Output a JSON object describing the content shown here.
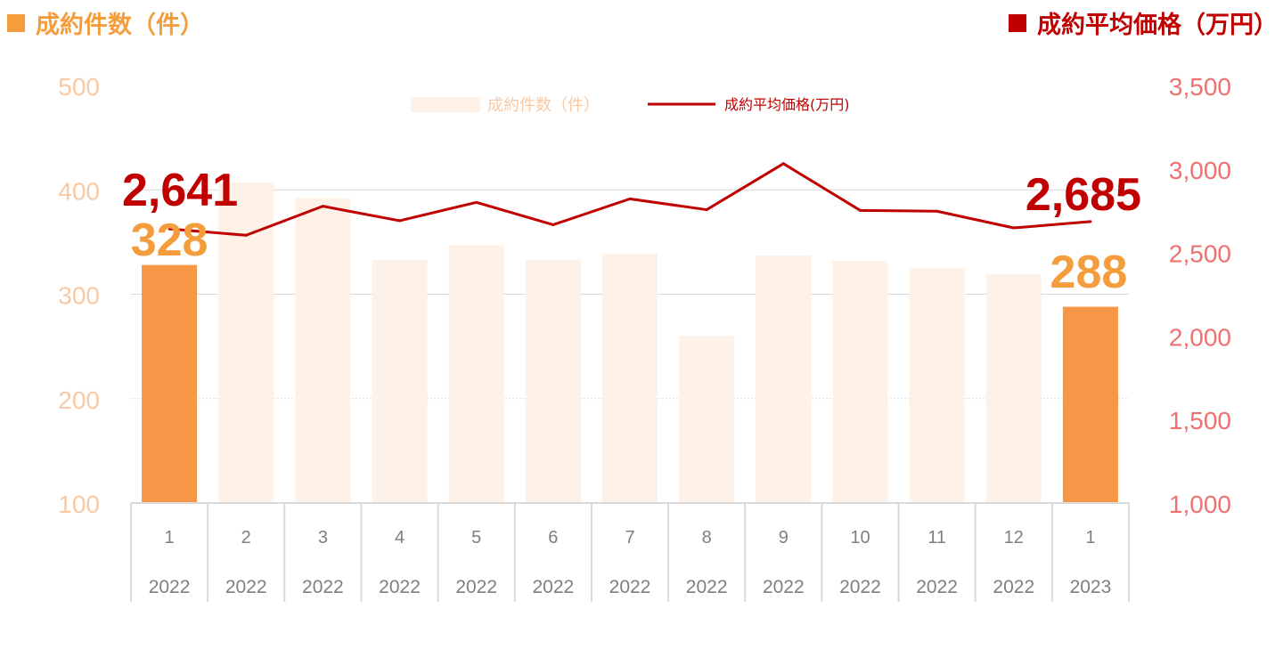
{
  "header": {
    "left_label": "成約件数（件）",
    "right_label": "成約平均価格（万円）"
  },
  "colors": {
    "highlight_bar": "#F79646",
    "muted_bar": "#FDF1E8",
    "line": "#C00000",
    "left_axis_text": "#F8C9A5",
    "right_axis_text": "#EE7070",
    "big_count_label": "#F59C3C",
    "big_price_label": "#C00000",
    "grid": "#D9D9D9",
    "category_text": "#7F7F7F"
  },
  "chart_data": {
    "type": "bar",
    "categories": [
      {
        "month": "1",
        "year": "2022"
      },
      {
        "month": "2",
        "year": "2022"
      },
      {
        "month": "3",
        "year": "2022"
      },
      {
        "month": "4",
        "year": "2022"
      },
      {
        "month": "5",
        "year": "2022"
      },
      {
        "month": "6",
        "year": "2022"
      },
      {
        "month": "7",
        "year": "2022"
      },
      {
        "month": "8",
        "year": "2022"
      },
      {
        "month": "9",
        "year": "2022"
      },
      {
        "month": "10",
        "year": "2022"
      },
      {
        "month": "11",
        "year": "2022"
      },
      {
        "month": "12",
        "year": "2022"
      },
      {
        "month": "1",
        "year": "2023"
      }
    ],
    "series": [
      {
        "name": "成約件数（件）",
        "type": "bar",
        "axis": "left",
        "values": [
          328,
          407,
          392,
          333,
          347,
          333,
          339,
          260,
          337,
          332,
          325,
          319,
          288
        ],
        "highlight": [
          true,
          false,
          false,
          false,
          false,
          false,
          false,
          false,
          false,
          false,
          false,
          false,
          true
        ]
      },
      {
        "name": "成約平均価格(万円)",
        "type": "line",
        "axis": "right",
        "values": [
          2641,
          2603,
          2777,
          2690,
          2800,
          2666,
          2821,
          2756,
          3032,
          2752,
          2747,
          2647,
          2685
        ]
      }
    ],
    "y_left": {
      "min": 100,
      "max": 500,
      "ticks": [
        "500",
        "400",
        "300",
        "200",
        "100"
      ]
    },
    "y_right": {
      "min": 1000,
      "max": 3500,
      "ticks": [
        "3,500",
        "3,000",
        "2,500",
        "2,000",
        "1,500",
        "1,000"
      ]
    },
    "annotations": {
      "count_first": "328",
      "count_last": "288",
      "price_first": "2,641",
      "price_last": "2,685"
    },
    "legend": {
      "placement": "top-center",
      "items": [
        "成約件数（件）",
        "成約平均価格(万円)"
      ]
    },
    "grid": true
  }
}
